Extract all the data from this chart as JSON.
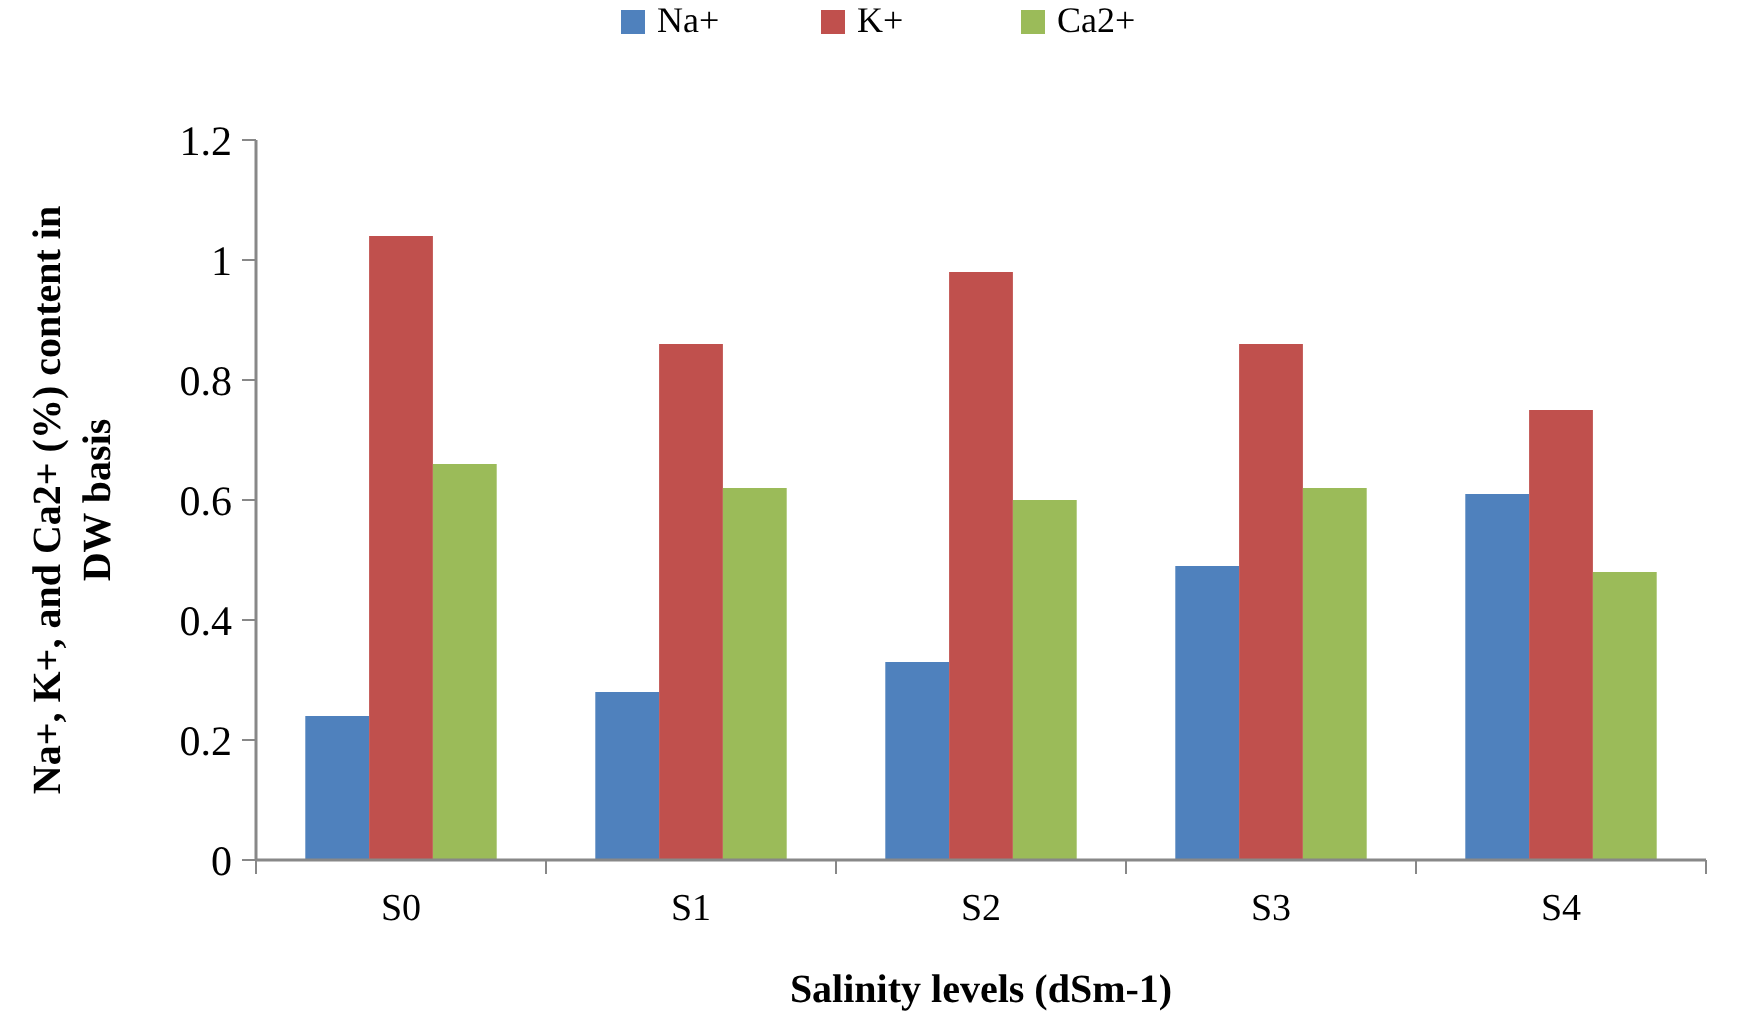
{
  "chart_data": {
    "type": "bar",
    "xlabel": "Salinity levels (dSm-1)",
    "ylabel": "Na+, K+, and Ca2+ (%) content in DW basis",
    "categories": [
      "S0",
      "S1",
      "S2",
      "S3",
      "S4"
    ],
    "series": [
      {
        "name": "Na+",
        "color": "#4f81bd",
        "values": [
          0.24,
          0.28,
          0.33,
          0.49,
          0.61
        ]
      },
      {
        "name": "K+",
        "color": "#c0504d",
        "values": [
          1.04,
          0.86,
          0.98,
          0.86,
          0.75
        ]
      },
      {
        "name": "Ca2+",
        "color": "#9bbb59",
        "values": [
          0.66,
          0.62,
          0.6,
          0.62,
          0.48
        ]
      }
    ],
    "ylim": [
      0,
      1.2
    ],
    "yticks": [
      0,
      {
        "value": 0.2,
        "label": "0.2"
      },
      {
        "value": 0.4,
        "label": "0.4"
      },
      {
        "value": 0.6,
        "label": "0.6"
      },
      {
        "value": 0.8,
        "label": "0.8"
      },
      1,
      {
        "value": 1.2,
        "label": "1.2"
      }
    ],
    "grid": false,
    "legend": "top"
  }
}
